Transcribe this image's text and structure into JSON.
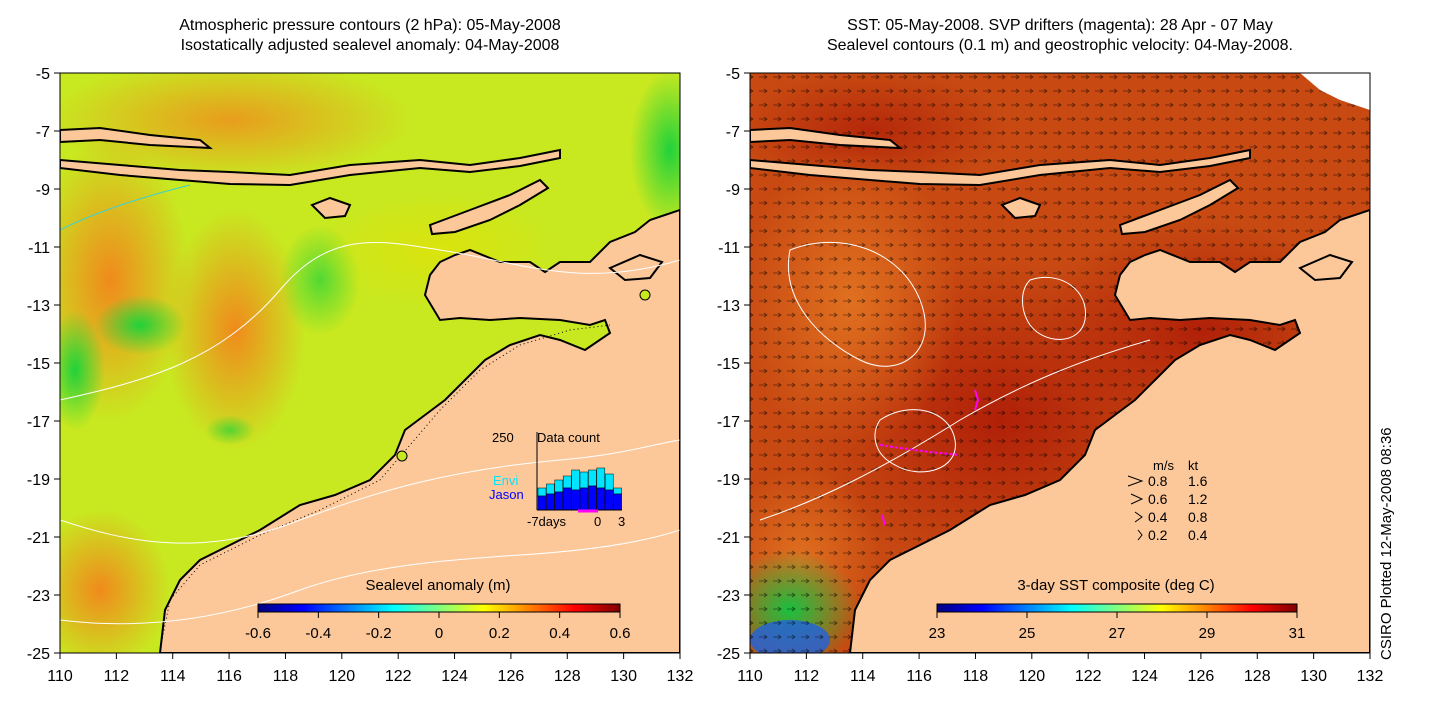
{
  "left_panel": {
    "title_line1": "Atmospheric pressure contours (2 hPa): 05-May-2008",
    "title_line2": "Isostatically adjusted sealevel anomaly: 04-May-2008",
    "colorbar": {
      "label": "Sealevel anomaly (m)",
      "ticks": [
        "-0.6",
        "-0.4",
        "-0.2",
        "0",
        "0.2",
        "0.4",
        "0.6"
      ],
      "colors": [
        "#00007f",
        "#0000ff",
        "#0080ff",
        "#00ffff",
        "#80ff80",
        "#ffff00",
        "#ff8000",
        "#ff0000",
        "#7f0000"
      ]
    },
    "inset": {
      "max_label": "250",
      "title": "Data count",
      "series": [
        "Envi",
        "Jason"
      ],
      "series_colors": [
        "#00e5ff",
        "#0000ff"
      ],
      "xtick_labels": [
        "-7days",
        "0",
        "3"
      ]
    }
  },
  "right_panel": {
    "title_line1": "SST: 05-May-2008. SVP drifters (magenta): 28 Apr - 07 May",
    "title_line2": "Sealevel contours (0.1 m) and geostrophic velocity: 04-May-2008.",
    "colorbar": {
      "label": "3-day SST composite (deg C)",
      "ticks": [
        "23",
        "25",
        "27",
        "29",
        "31"
      ],
      "colors": [
        "#00007f",
        "#0000ff",
        "#0080ff",
        "#00ffff",
        "#80ff80",
        "#ffff00",
        "#ff8000",
        "#ff0000",
        "#7f0000"
      ]
    },
    "velocity_legend": {
      "header_ms": "m/s",
      "header_kt": "kt",
      "rows": [
        {
          "ms": "0.8",
          "kt": "1.6"
        },
        {
          "ms": "0.6",
          "kt": "1.2"
        },
        {
          "ms": "0.4",
          "kt": "0.8"
        },
        {
          "ms": "0.2",
          "kt": "0.4"
        }
      ]
    }
  },
  "axes": {
    "x_ticks": [
      "110",
      "112",
      "114",
      "116",
      "118",
      "120",
      "122",
      "124",
      "126",
      "128",
      "130",
      "132"
    ],
    "y_ticks": [
      "-5",
      "-7",
      "-9",
      "-11",
      "-13",
      "-15",
      "-17",
      "-19",
      "-21",
      "-23",
      "-25"
    ],
    "x_range": [
      110,
      132
    ],
    "y_range": [
      -25,
      -5
    ]
  },
  "colors": {
    "land": "#fcc89a",
    "coast": "#000000",
    "drifters": "#ff00ff"
  },
  "credit": "CSIRO Plotted 12-May-2008 08:36"
}
